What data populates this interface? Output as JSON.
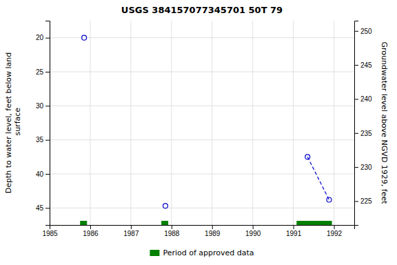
{
  "chart_data": {
    "type": "scatter",
    "title": "USGS 384157077345701 50T 79",
    "y_label": "Depth to water level, feet below land\n surface",
    "y2_label": "Groundwater level above NGVD 1929, feet",
    "xlim": [
      1985,
      1992.5
    ],
    "xticks": [
      1985,
      1986,
      1987,
      1988,
      1989,
      1990,
      1991,
      1992
    ],
    "ylim": [
      47.5,
      17.5
    ],
    "yticks": [
      20,
      25,
      30,
      35,
      40,
      45
    ],
    "y2lim": [
      221.5,
      251.5
    ],
    "y2ticks": [
      250,
      245,
      240,
      235,
      230,
      225
    ],
    "grid": true,
    "legend": "bottom",
    "x": [
      1985.85,
      1987.85,
      1991.35,
      1991.88
    ],
    "series": [
      {
        "type": "scatter",
        "marker": "circle-open",
        "color": "#0000cc",
        "values": [
          20.0,
          44.7,
          37.5,
          43.8
        ]
      },
      {
        "type": "line",
        "line_style": "dashed",
        "color": "#0000cc",
        "x": [
          1991.35,
          1991.88
        ],
        "values": [
          37.5,
          43.8
        ]
      },
      {
        "type": "span",
        "name": "Period of approved data",
        "color": "#008000",
        "x_start": [
          1985.75,
          1987.75,
          1991.08
        ],
        "x_end": [
          1985.92,
          1987.92,
          1991.95
        ]
      }
    ]
  }
}
